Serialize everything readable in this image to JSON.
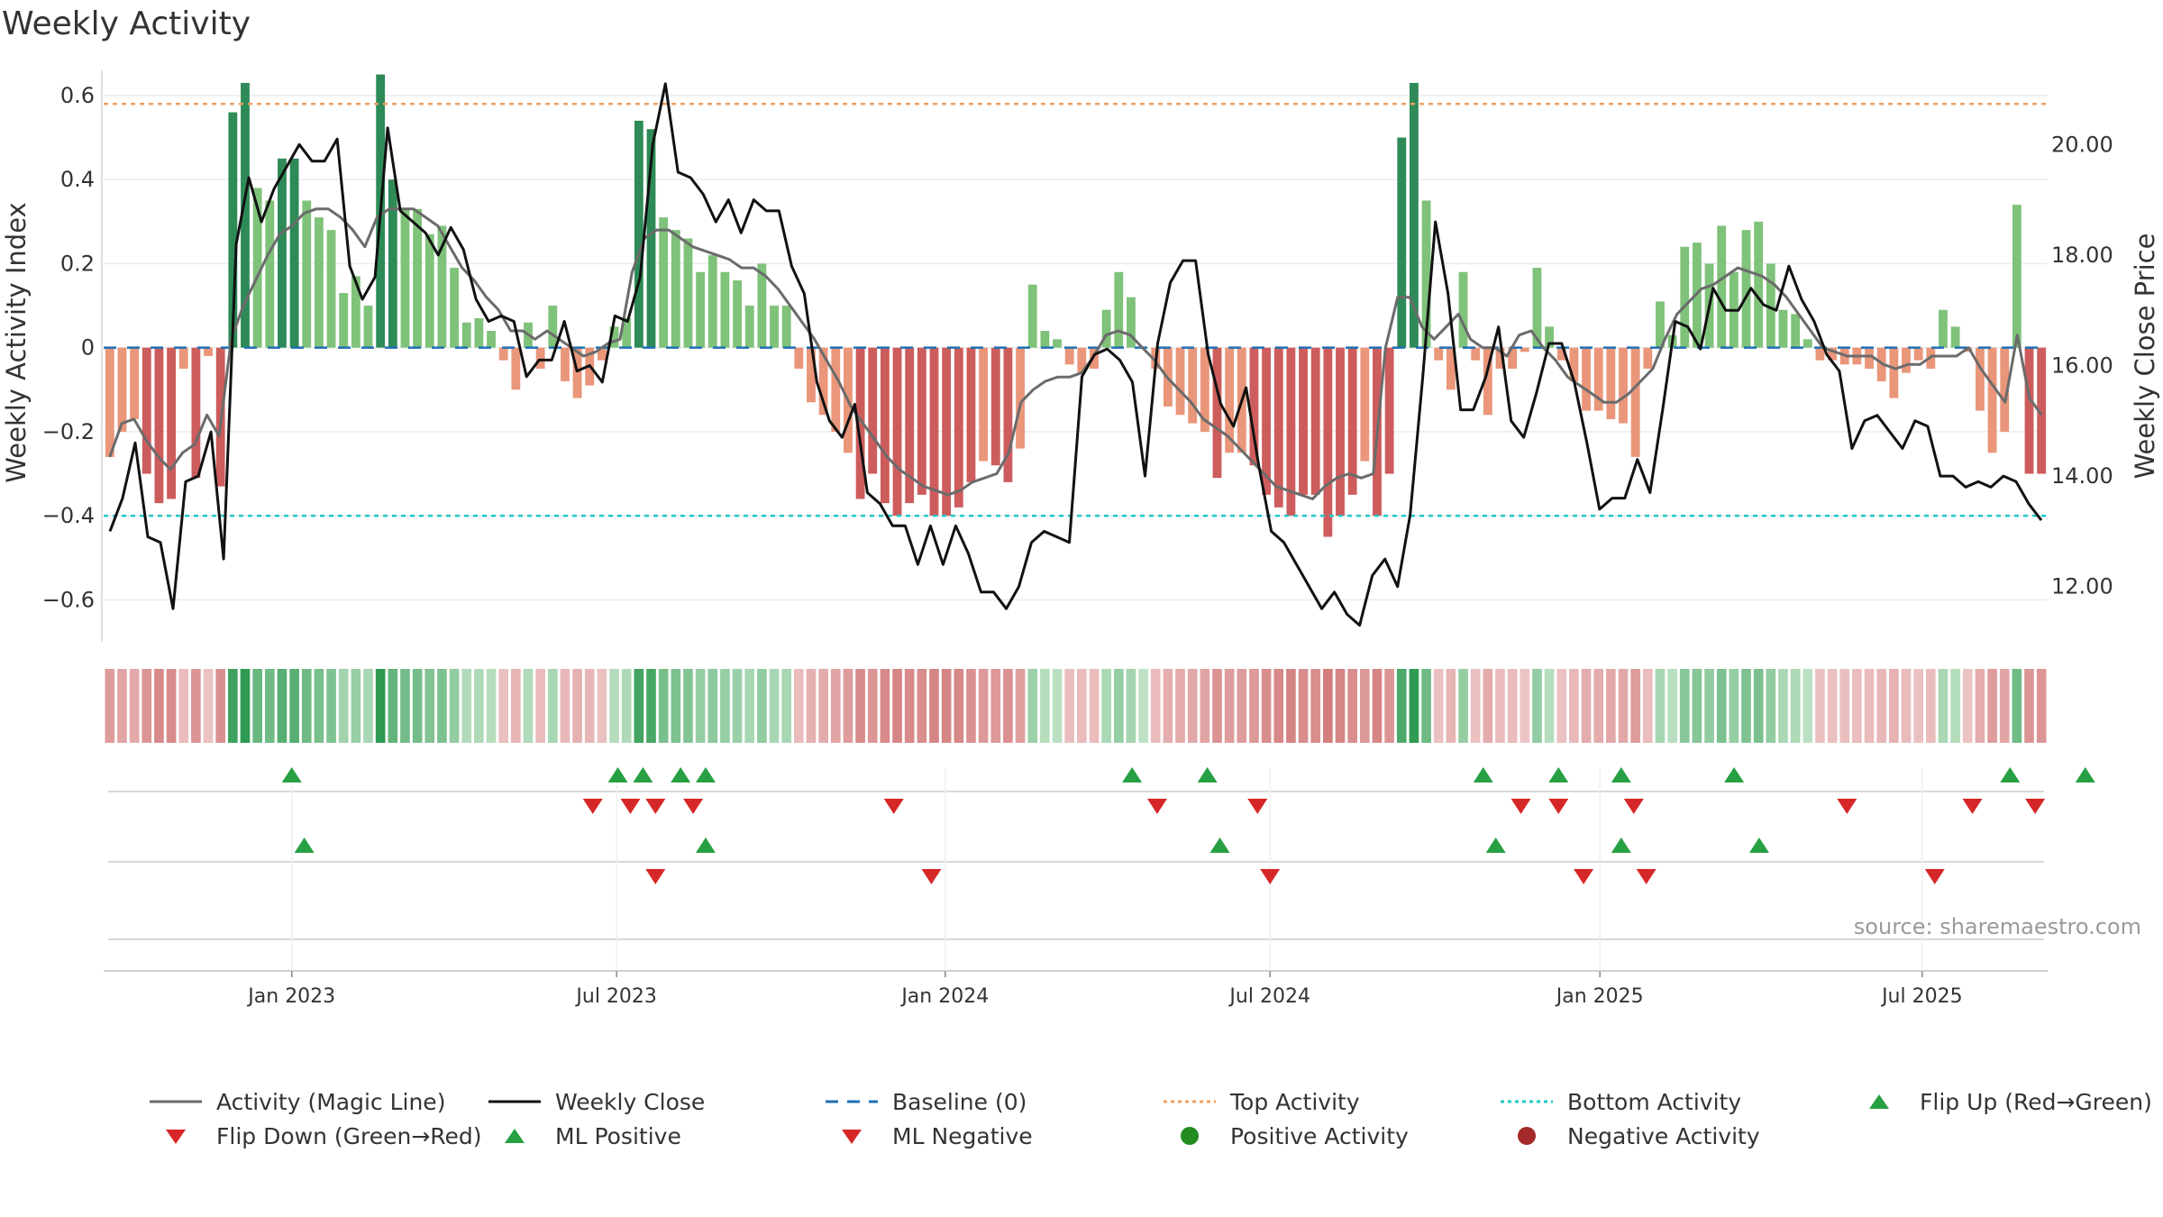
{
  "title": "Weekly Activity",
  "source": "source: sharemaestro.com",
  "colors": {
    "pos_strong": "#2e8b57",
    "pos_light": "#7fc27a",
    "neg_strong": "#cd5c5c",
    "neg_light": "#e9967a",
    "magic": "#6b6b6b",
    "close": "#111111",
    "baseline": "#1f6fb4",
    "top": "#f0a060",
    "bottom": "#20c9c9",
    "up": "#27a043",
    "down": "#d62728",
    "pos_dot": "#228b22",
    "neg_dot": "#a52a2a"
  },
  "legend": [
    {
      "id": "magic",
      "label": "Activity (Magic Line)",
      "icon": "line-icon"
    },
    {
      "id": "close",
      "label": "Weekly Close",
      "icon": "line-icon"
    },
    {
      "id": "baseline",
      "label": "Baseline (0)",
      "icon": "dashed-line-icon"
    },
    {
      "id": "top",
      "label": "Top Activity",
      "icon": "dotted-line-icon"
    },
    {
      "id": "bottom",
      "label": "Bottom Activity",
      "icon": "dotted-line-icon"
    },
    {
      "id": "flipup",
      "label": "Flip Up (Red→Green)",
      "icon": "triangle-up-icon"
    },
    {
      "id": "flipdown",
      "label": "Flip Down (Green→Red)",
      "icon": "triangle-down-icon"
    },
    {
      "id": "mlpos",
      "label": "ML Positive",
      "icon": "triangle-up-icon"
    },
    {
      "id": "mlneg",
      "label": "ML Negative",
      "icon": "triangle-down-icon"
    },
    {
      "id": "posact",
      "label": "Positive Activity",
      "icon": "circle-icon"
    },
    {
      "id": "negact",
      "label": "Negative Activity",
      "icon": "circle-icon"
    }
  ],
  "chart_data": {
    "type": "bar",
    "title": "Weekly Activity",
    "ylabel": "Weekly Activity Index",
    "y2label": "Weekly Close Price",
    "ylim": [
      -0.7,
      0.72
    ],
    "y2lim": [
      11.0,
      21.8
    ],
    "yticks": [
      0.6,
      0.4,
      0.2,
      0,
      -0.2,
      -0.4,
      -0.6
    ],
    "ytick_labels": [
      "0.6",
      "0.4",
      "0.2",
      "0",
      "−0.2",
      "−0.4",
      "−0.6"
    ],
    "y2ticks": [
      20,
      18,
      16,
      14,
      12
    ],
    "y2tick_labels": [
      "20.00",
      "18.00",
      "16.00",
      "14.00",
      "12.00"
    ],
    "x_start_week": -15,
    "x_end_week": 140,
    "xticks": [
      {
        "label": "Jan 2023",
        "week": 0
      },
      {
        "label": "Jul 2023",
        "week": 25.9
      },
      {
        "label": "Jan 2024",
        "week": 52.1
      },
      {
        "label": "Jul 2024",
        "week": 78
      },
      {
        "label": "Jan 2025",
        "week": 104.3
      },
      {
        "label": "Jul 2025",
        "week": 130
      }
    ],
    "top_activity": 0.58,
    "bottom_activity": -0.4,
    "baseline": 0,
    "activity": [
      -0.26,
      -0.2,
      -0.17,
      -0.3,
      -0.37,
      -0.36,
      -0.05,
      -0.31,
      -0.02,
      -0.33,
      0.56,
      0.63,
      0.38,
      0.35,
      0.45,
      0.45,
      0.35,
      0.31,
      0.28,
      0.13,
      0.17,
      0.1,
      0.65,
      0.4,
      0.33,
      0.33,
      0.27,
      0.29,
      0.19,
      0.06,
      0.07,
      0.04,
      -0.03,
      -0.1,
      0.06,
      -0.05,
      0.1,
      -0.08,
      -0.12,
      -0.09,
      -0.03,
      0.05,
      0.07,
      0.54,
      0.52,
      0.31,
      0.28,
      0.26,
      0.18,
      0.22,
      0.18,
      0.16,
      0.1,
      0.2,
      0.1,
      0.1,
      -0.05,
      -0.13,
      -0.16,
      -0.2,
      -0.25,
      -0.36,
      -0.3,
      -0.37,
      -0.4,
      -0.37,
      -0.35,
      -0.4,
      -0.4,
      -0.38,
      -0.32,
      -0.27,
      -0.28,
      -0.32,
      -0.24,
      0.15,
      0.04,
      0.02,
      -0.04,
      -0.06,
      -0.05,
      0.09,
      0.18,
      0.12,
      0.0,
      -0.05,
      -0.14,
      -0.16,
      -0.18,
      -0.2,
      -0.31,
      -0.25,
      -0.25,
      -0.28,
      -0.35,
      -0.38,
      -0.4,
      -0.35,
      -0.35,
      -0.45,
      -0.4,
      -0.35,
      -0.27,
      -0.4,
      -0.3,
      0.5,
      0.63,
      0.35,
      -0.03,
      -0.1,
      0.18,
      -0.03,
      -0.16,
      -0.05,
      -0.05,
      -0.01,
      0.19,
      0.05,
      -0.03,
      -0.08,
      -0.15,
      -0.15,
      -0.17,
      -0.18,
      -0.26,
      -0.05,
      0.11,
      0.03,
      0.24,
      0.25,
      0.2,
      0.29,
      0.18,
      0.28,
      0.3,
      0.2,
      0.09,
      0.08,
      0.02,
      -0.03,
      -0.03,
      -0.04,
      -0.04,
      -0.05,
      -0.08,
      -0.12,
      -0.06,
      -0.03,
      -0.05,
      0.09,
      0.05,
      -0.01,
      -0.15,
      -0.25,
      -0.2,
      0.34,
      -0.3,
      -0.3
    ],
    "magic_line": [
      -0.26,
      -0.18,
      -0.17,
      -0.22,
      -0.26,
      -0.29,
      -0.25,
      -0.23,
      -0.16,
      -0.21,
      0.02,
      0.1,
      0.16,
      0.22,
      0.27,
      0.29,
      0.32,
      0.33,
      0.33,
      0.31,
      0.28,
      0.24,
      0.31,
      0.33,
      0.33,
      0.33,
      0.31,
      0.29,
      0.24,
      0.19,
      0.16,
      0.12,
      0.09,
      0.04,
      0.04,
      0.02,
      0.04,
      0.02,
      0.0,
      -0.02,
      -0.01,
      0.01,
      0.02,
      0.18,
      0.26,
      0.28,
      0.28,
      0.26,
      0.24,
      0.23,
      0.22,
      0.21,
      0.19,
      0.19,
      0.17,
      0.14,
      0.1,
      0.06,
      0.02,
      -0.03,
      -0.08,
      -0.14,
      -0.18,
      -0.22,
      -0.26,
      -0.29,
      -0.31,
      -0.33,
      -0.34,
      -0.35,
      -0.34,
      -0.32,
      -0.31,
      -0.3,
      -0.25,
      -0.13,
      -0.1,
      -0.08,
      -0.07,
      -0.07,
      -0.06,
      -0.02,
      0.03,
      0.04,
      0.03,
      0.0,
      -0.03,
      -0.07,
      -0.1,
      -0.13,
      -0.17,
      -0.19,
      -0.21,
      -0.24,
      -0.27,
      -0.3,
      -0.33,
      -0.34,
      -0.35,
      -0.36,
      -0.33,
      -0.31,
      -0.3,
      -0.31,
      -0.3,
      0.0,
      0.12,
      0.12,
      0.05,
      0.02,
      0.05,
      0.08,
      0.02,
      0.0,
      0.0,
      -0.02,
      0.03,
      0.04,
      0.0,
      -0.03,
      -0.07,
      -0.09,
      -0.11,
      -0.13,
      -0.13,
      -0.11,
      -0.08,
      -0.05,
      0.02,
      0.08,
      0.11,
      0.14,
      0.15,
      0.17,
      0.19,
      0.18,
      0.17,
      0.15,
      0.12,
      0.08,
      0.04,
      0.0,
      -0.01,
      -0.02,
      -0.02,
      -0.02,
      -0.04,
      -0.05,
      -0.04,
      -0.04,
      -0.02,
      -0.02,
      -0.02,
      0.0,
      -0.05,
      -0.09,
      -0.13,
      0.03,
      -0.12,
      -0.16
    ],
    "weekly_close": [
      13.0,
      13.6,
      14.6,
      12.9,
      12.8,
      11.6,
      13.9,
      14.0,
      14.8,
      12.5,
      18.2,
      19.4,
      18.6,
      19.2,
      19.6,
      20.0,
      19.7,
      19.7,
      20.1,
      17.8,
      17.2,
      17.6,
      20.3,
      18.8,
      18.6,
      18.4,
      18.0,
      18.5,
      18.1,
      17.2,
      16.8,
      16.9,
      16.8,
      15.8,
      16.1,
      16.1,
      16.8,
      15.9,
      16.0,
      15.7,
      16.9,
      16.8,
      17.6,
      20.0,
      21.1,
      19.5,
      19.4,
      19.1,
      18.6,
      19.0,
      18.4,
      19.0,
      18.8,
      18.8,
      17.8,
      17.3,
      15.7,
      15.0,
      14.7,
      15.3,
      13.7,
      13.5,
      13.1,
      13.1,
      12.4,
      13.1,
      12.4,
      13.1,
      12.6,
      11.9,
      11.9,
      11.6,
      12.0,
      12.8,
      13.0,
      12.9,
      12.8,
      15.8,
      16.2,
      16.3,
      16.1,
      15.7,
      14.0,
      16.4,
      17.5,
      17.9,
      17.9,
      16.2,
      15.3,
      14.9,
      15.6,
      14.2,
      13.0,
      12.8,
      12.4,
      12.0,
      11.6,
      11.9,
      11.5,
      11.3,
      12.2,
      12.5,
      12.0,
      13.3,
      15.8,
      18.6,
      17.3,
      15.2,
      15.2,
      15.8,
      16.7,
      15.0,
      14.7,
      15.5,
      16.4,
      16.4,
      15.7,
      14.6,
      13.4,
      13.6,
      13.6,
      14.3,
      13.7,
      15.2,
      16.8,
      16.7,
      16.3,
      17.4,
      17.0,
      17.0,
      17.4,
      17.1,
      17.0,
      17.8,
      17.2,
      16.8,
      16.2,
      15.9,
      14.5,
      15.0,
      15.1,
      14.8,
      14.5,
      15.0,
      14.9,
      14.0,
      14.0,
      13.8,
      13.9,
      13.8,
      14.0,
      13.9,
      13.5,
      13.2
    ],
    "strip": [
      0.26,
      0.2,
      0.17,
      0.3,
      0.37,
      0.36,
      0.05,
      0.31,
      0.02,
      0.33,
      0.56,
      0.63,
      0.38,
      0.35,
      0.45,
      0.45,
      0.35,
      0.31,
      0.28,
      0.13,
      0.17,
      0.1,
      0.65,
      0.4,
      0.33,
      0.33,
      0.27,
      0.29,
      0.19,
      0.06,
      0.07,
      0.04,
      0.03,
      0.1,
      0.06,
      0.05,
      0.1,
      0.08,
      0.12,
      0.09,
      0.03,
      0.05,
      0.07,
      0.54,
      0.52,
      0.31,
      0.28,
      0.26,
      0.18,
      0.22,
      0.18,
      0.16,
      0.1,
      0.2,
      0.1,
      0.1,
      0.05,
      0.13,
      0.16,
      0.2,
      0.25,
      0.36,
      0.3,
      0.37,
      0.4,
      0.37,
      0.35,
      0.4,
      0.4,
      0.38,
      0.32,
      0.27,
      0.28,
      0.32,
      0.24,
      0.15,
      0.04,
      0.02,
      0.04,
      0.06,
      0.05,
      0.09,
      0.18,
      0.12,
      0.0,
      0.05,
      0.14,
      0.16,
      0.18,
      0.2,
      0.31,
      0.25,
      0.25,
      0.28,
      0.35,
      0.38,
      0.4,
      0.35,
      0.35,
      0.45,
      0.4,
      0.35,
      0.27,
      0.4,
      0.3,
      0.5,
      0.63,
      0.35,
      0.03,
      0.1,
      0.18,
      0.03,
      0.16,
      0.05,
      0.05,
      0.01,
      0.19,
      0.05,
      0.03,
      0.08,
      0.15,
      0.15,
      0.17,
      0.18,
      0.26,
      0.05,
      0.11,
      0.03,
      0.24,
      0.25,
      0.2,
      0.29,
      0.18,
      0.28,
      0.3,
      0.2,
      0.09,
      0.08,
      0.02,
      0.03,
      0.03,
      0.04,
      0.04,
      0.05,
      0.08,
      0.12,
      0.06,
      0.03,
      0.05,
      0.09,
      0.05,
      0.01,
      0.15,
      0.25,
      0.2,
      0.34,
      0.3,
      0.3
    ],
    "flip_up_weeks": [
      0,
      26,
      28,
      31,
      33,
      67,
      73,
      95,
      101,
      106,
      115,
      137,
      143
    ],
    "flip_down_weeks": [
      24,
      27,
      29,
      32,
      48,
      69,
      77,
      98,
      101,
      107,
      124,
      134,
      139
    ],
    "ml_positive_weeks": [
      1,
      33,
      74,
      96,
      106,
      117
    ],
    "ml_negative_weeks": [
      29,
      51,
      78,
      103,
      108,
      131
    ],
    "positive_activity_weeks": [],
    "negative_activity_weeks": []
  }
}
